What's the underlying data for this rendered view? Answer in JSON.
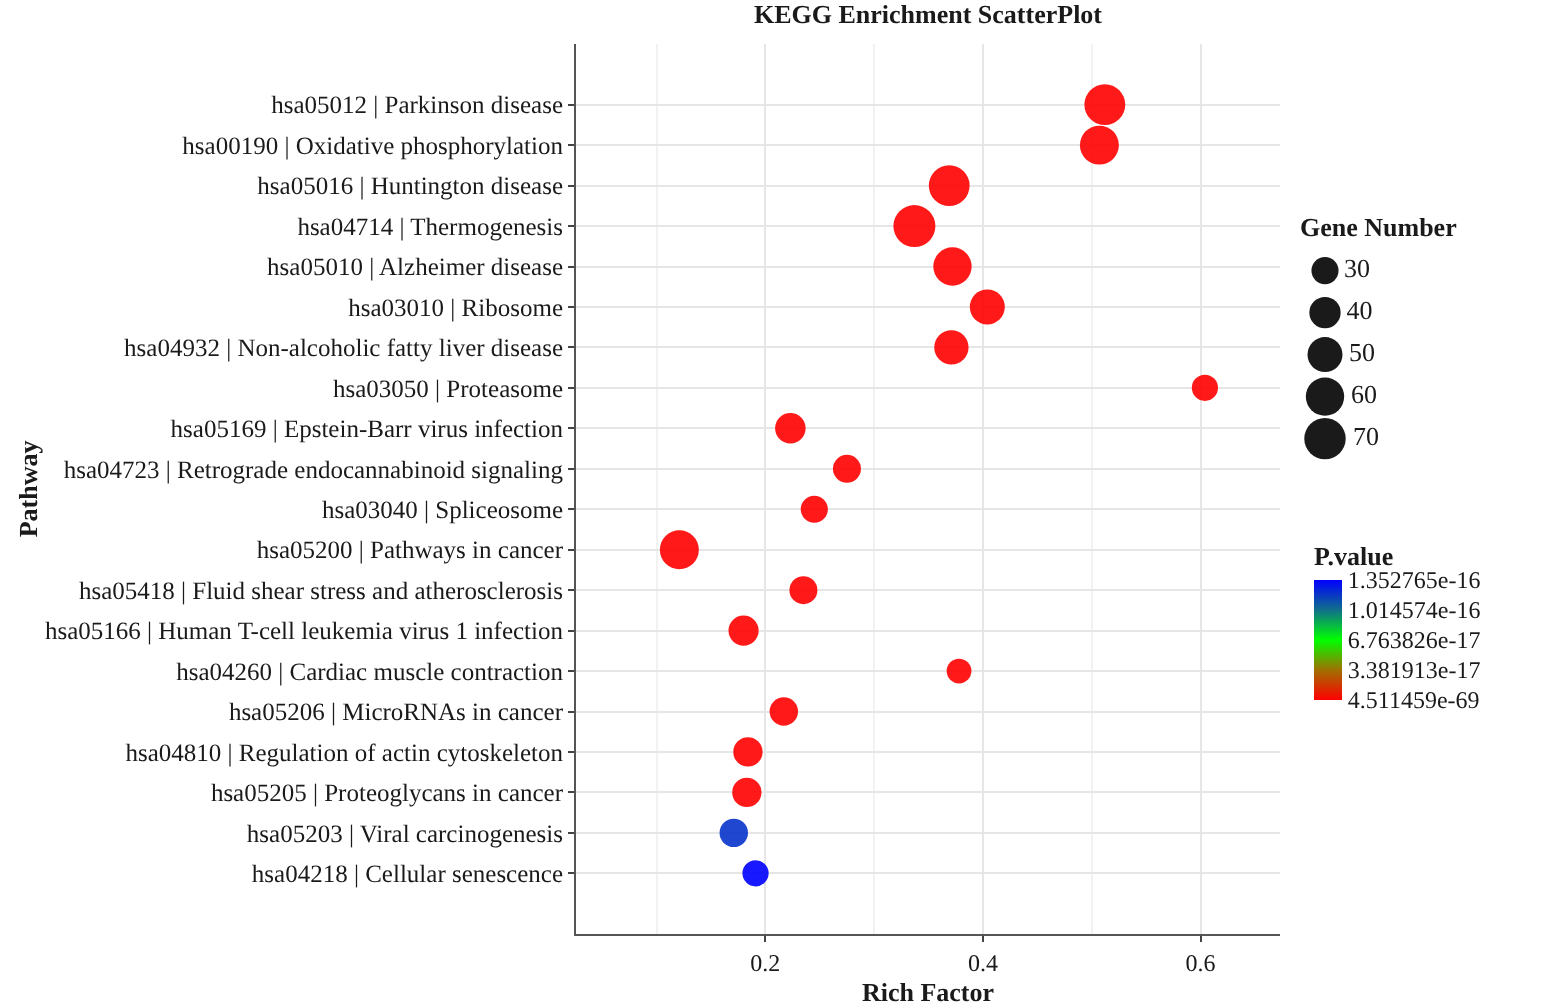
{
  "chart_data": {
    "type": "bubble",
    "title": "KEGG Enrichment ScatterPlot",
    "xlabel": "Rich Factor",
    "ylabel": "Pathway",
    "legend_title": "Gene Number",
    "clabel": "P.value",
    "categories": [
      "hsa05012 | Parkinson disease",
      "hsa00190 | Oxidative phosphorylation",
      "hsa05016 | Huntington disease",
      "hsa04714 | Thermogenesis",
      "hsa05010 | Alzheimer disease",
      "hsa03010 | Ribosome",
      "hsa04932 | Non-alcoholic fatty liver disease",
      "hsa03050 | Proteasome",
      "hsa05169 | Epstein-Barr virus infection",
      "hsa04723 | Retrograde endocannabinoid signaling",
      "hsa03040 | Spliceosome",
      "hsa05200 | Pathways in cancer",
      "hsa05418 | Fluid shear stress and atherosclerosis",
      "hsa05166 | Human T-cell leukemia virus 1 infection",
      "hsa04260 | Cardiac muscle contraction",
      "hsa05206 | MicroRNAs in cancer",
      "hsa04810 | Regulation of actin cytoskeleton",
      "hsa05205 | Proteoglycans in cancer",
      "hsa05203 | Viral carcinogenesis",
      "hsa04218 | Cellular senescence"
    ],
    "values": [
      0.512,
      0.507,
      0.369,
      0.337,
      0.372,
      0.404,
      0.371,
      0.604,
      0.223,
      0.275,
      0.245,
      0.121,
      0.235,
      0.18,
      0.378,
      0.217,
      0.184,
      0.183,
      0.171,
      0.191
    ],
    "sizes": [
      68,
      62,
      68,
      72,
      60,
      50,
      48,
      28,
      38,
      32,
      30,
      62,
      32,
      37,
      25,
      33,
      35,
      35,
      33,
      28
    ],
    "size_legend": [
      30,
      40,
      50,
      60,
      70
    ],
    "cvalues": [
      4.511459e-69,
      4.511459e-69,
      4.511459e-69,
      4.511459e-69,
      4.511459e-69,
      4.511459e-69,
      4.511459e-69,
      4.511459e-69,
      4.511459e-69,
      4.511459e-69,
      4.511459e-69,
      4.511459e-69,
      4.511459e-69,
      4.511459e-69,
      4.511459e-69,
      4.511459e-69,
      4.511459e-69,
      4.511459e-69,
      1.2e-16,
      1.352765e-16
    ],
    "clim": [
      4.511459e-69,
      1.352765e-16
    ],
    "cticks": [
      {
        "value": 4.511459e-69,
        "label": "4.511459e-69"
      },
      {
        "value": 3.381913e-17,
        "label": "3.381913e-17"
      },
      {
        "value": 6.763826e-17,
        "label": "6.763826e-17"
      },
      {
        "value": 1.014574e-16,
        "label": "1.014574e-16"
      },
      {
        "value": 1.352765e-16,
        "label": "1.352765e-16"
      }
    ],
    "xlim": [
      0.026,
      0.673
    ],
    "xticks": [
      0.2,
      0.4,
      0.6
    ],
    "grid": true,
    "orientation": "horizontal"
  }
}
